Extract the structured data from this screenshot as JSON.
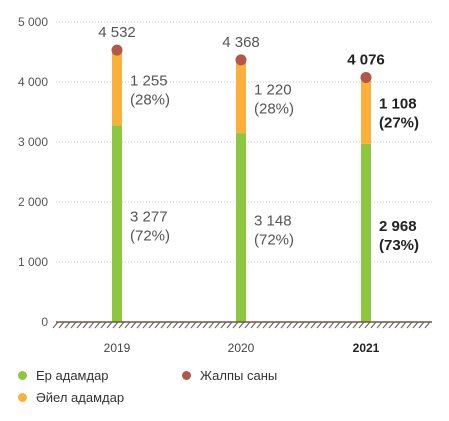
{
  "chart_data": {
    "type": "bar",
    "stacked": true,
    "categories": [
      "2019",
      "2020",
      "2021"
    ],
    "highlight_category": "2021",
    "ylim": [
      0,
      5000
    ],
    "yticks": [
      "0",
      "1 000",
      "2 000",
      "3 000",
      "4 000",
      "5 000"
    ],
    "ytick_values": [
      0,
      1000,
      2000,
      3000,
      4000,
      5000
    ],
    "series": [
      {
        "name": "Ер адамдар",
        "color": "#8dc63f",
        "values": [
          3277,
          3148,
          2968
        ],
        "value_labels": [
          "3 277",
          "3 148",
          "2 968"
        ],
        "percent_labels": [
          "(72%)",
          "(72%)",
          "(73%)"
        ]
      },
      {
        "name": "Әйел адамдар",
        "color": "#fbb03b",
        "values": [
          1255,
          1220,
          1108
        ],
        "value_labels": [
          "1 255",
          "1 220",
          "1 108"
        ],
        "percent_labels": [
          "(28%)",
          "(28%)",
          "(27%)"
        ]
      }
    ],
    "totals": {
      "name": "Жалпы саны",
      "color": "#b5564a",
      "values": [
        4532,
        4368,
        4076
      ],
      "labels": [
        "4 532",
        "4 368",
        "4 076"
      ]
    },
    "legend_position": "bottom",
    "grid": "dotted-horizontal"
  },
  "legend": {
    "men": "Ер адамдар",
    "total": "Жалпы саны",
    "women": "Әйел адамдар"
  }
}
